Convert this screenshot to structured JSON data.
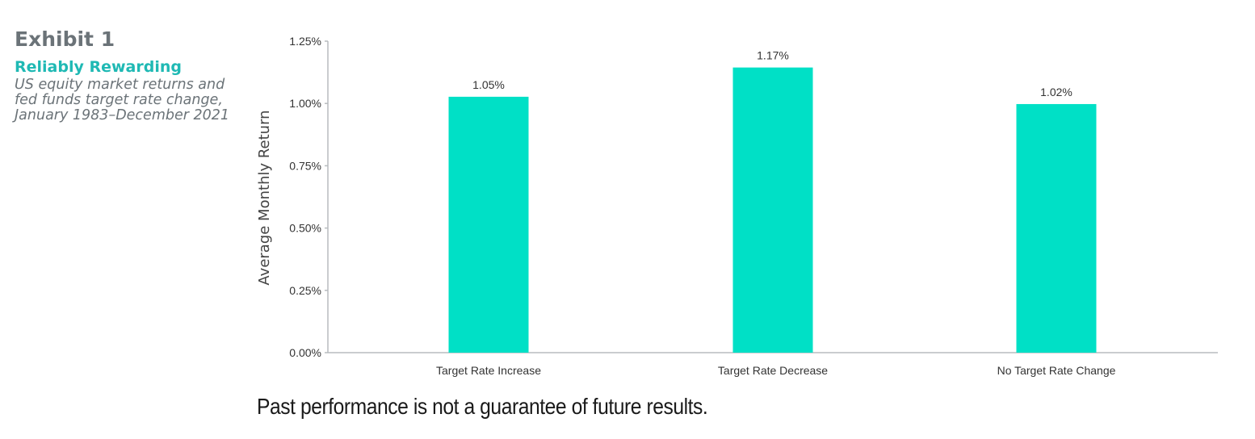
{
  "sidebar": {
    "exhibit": "Exhibit 1",
    "subtitle": "Reliably Rewarding",
    "description": "US equity market returns and fed funds target rate change, January 1983–December 2021"
  },
  "footnote": "Past performance is not a guarantee of future results.",
  "chart_data": {
    "type": "bar",
    "categories": [
      "Target Rate Increase",
      "Target Rate Decrease",
      "No Target Rate Change"
    ],
    "values": [
      1.05,
      1.17,
      1.02
    ],
    "data_labels": [
      "1.05%",
      "1.17%",
      "1.02%"
    ],
    "title": "",
    "xlabel": "",
    "ylabel": "Average Monthly Return",
    "ylim": [
      0,
      1.25
    ],
    "yticks": [
      0,
      0.25,
      0.5,
      0.75,
      1.0,
      1.25
    ],
    "ytick_labels": [
      "0.00%",
      "0.25%",
      "0.50%",
      "0.75%",
      "1.00%",
      "1.25%"
    ],
    "grid": false,
    "legend": "none",
    "bar_color": "#00e0c6",
    "axis_color": "#b8bcbf",
    "text_color": "#333333"
  }
}
